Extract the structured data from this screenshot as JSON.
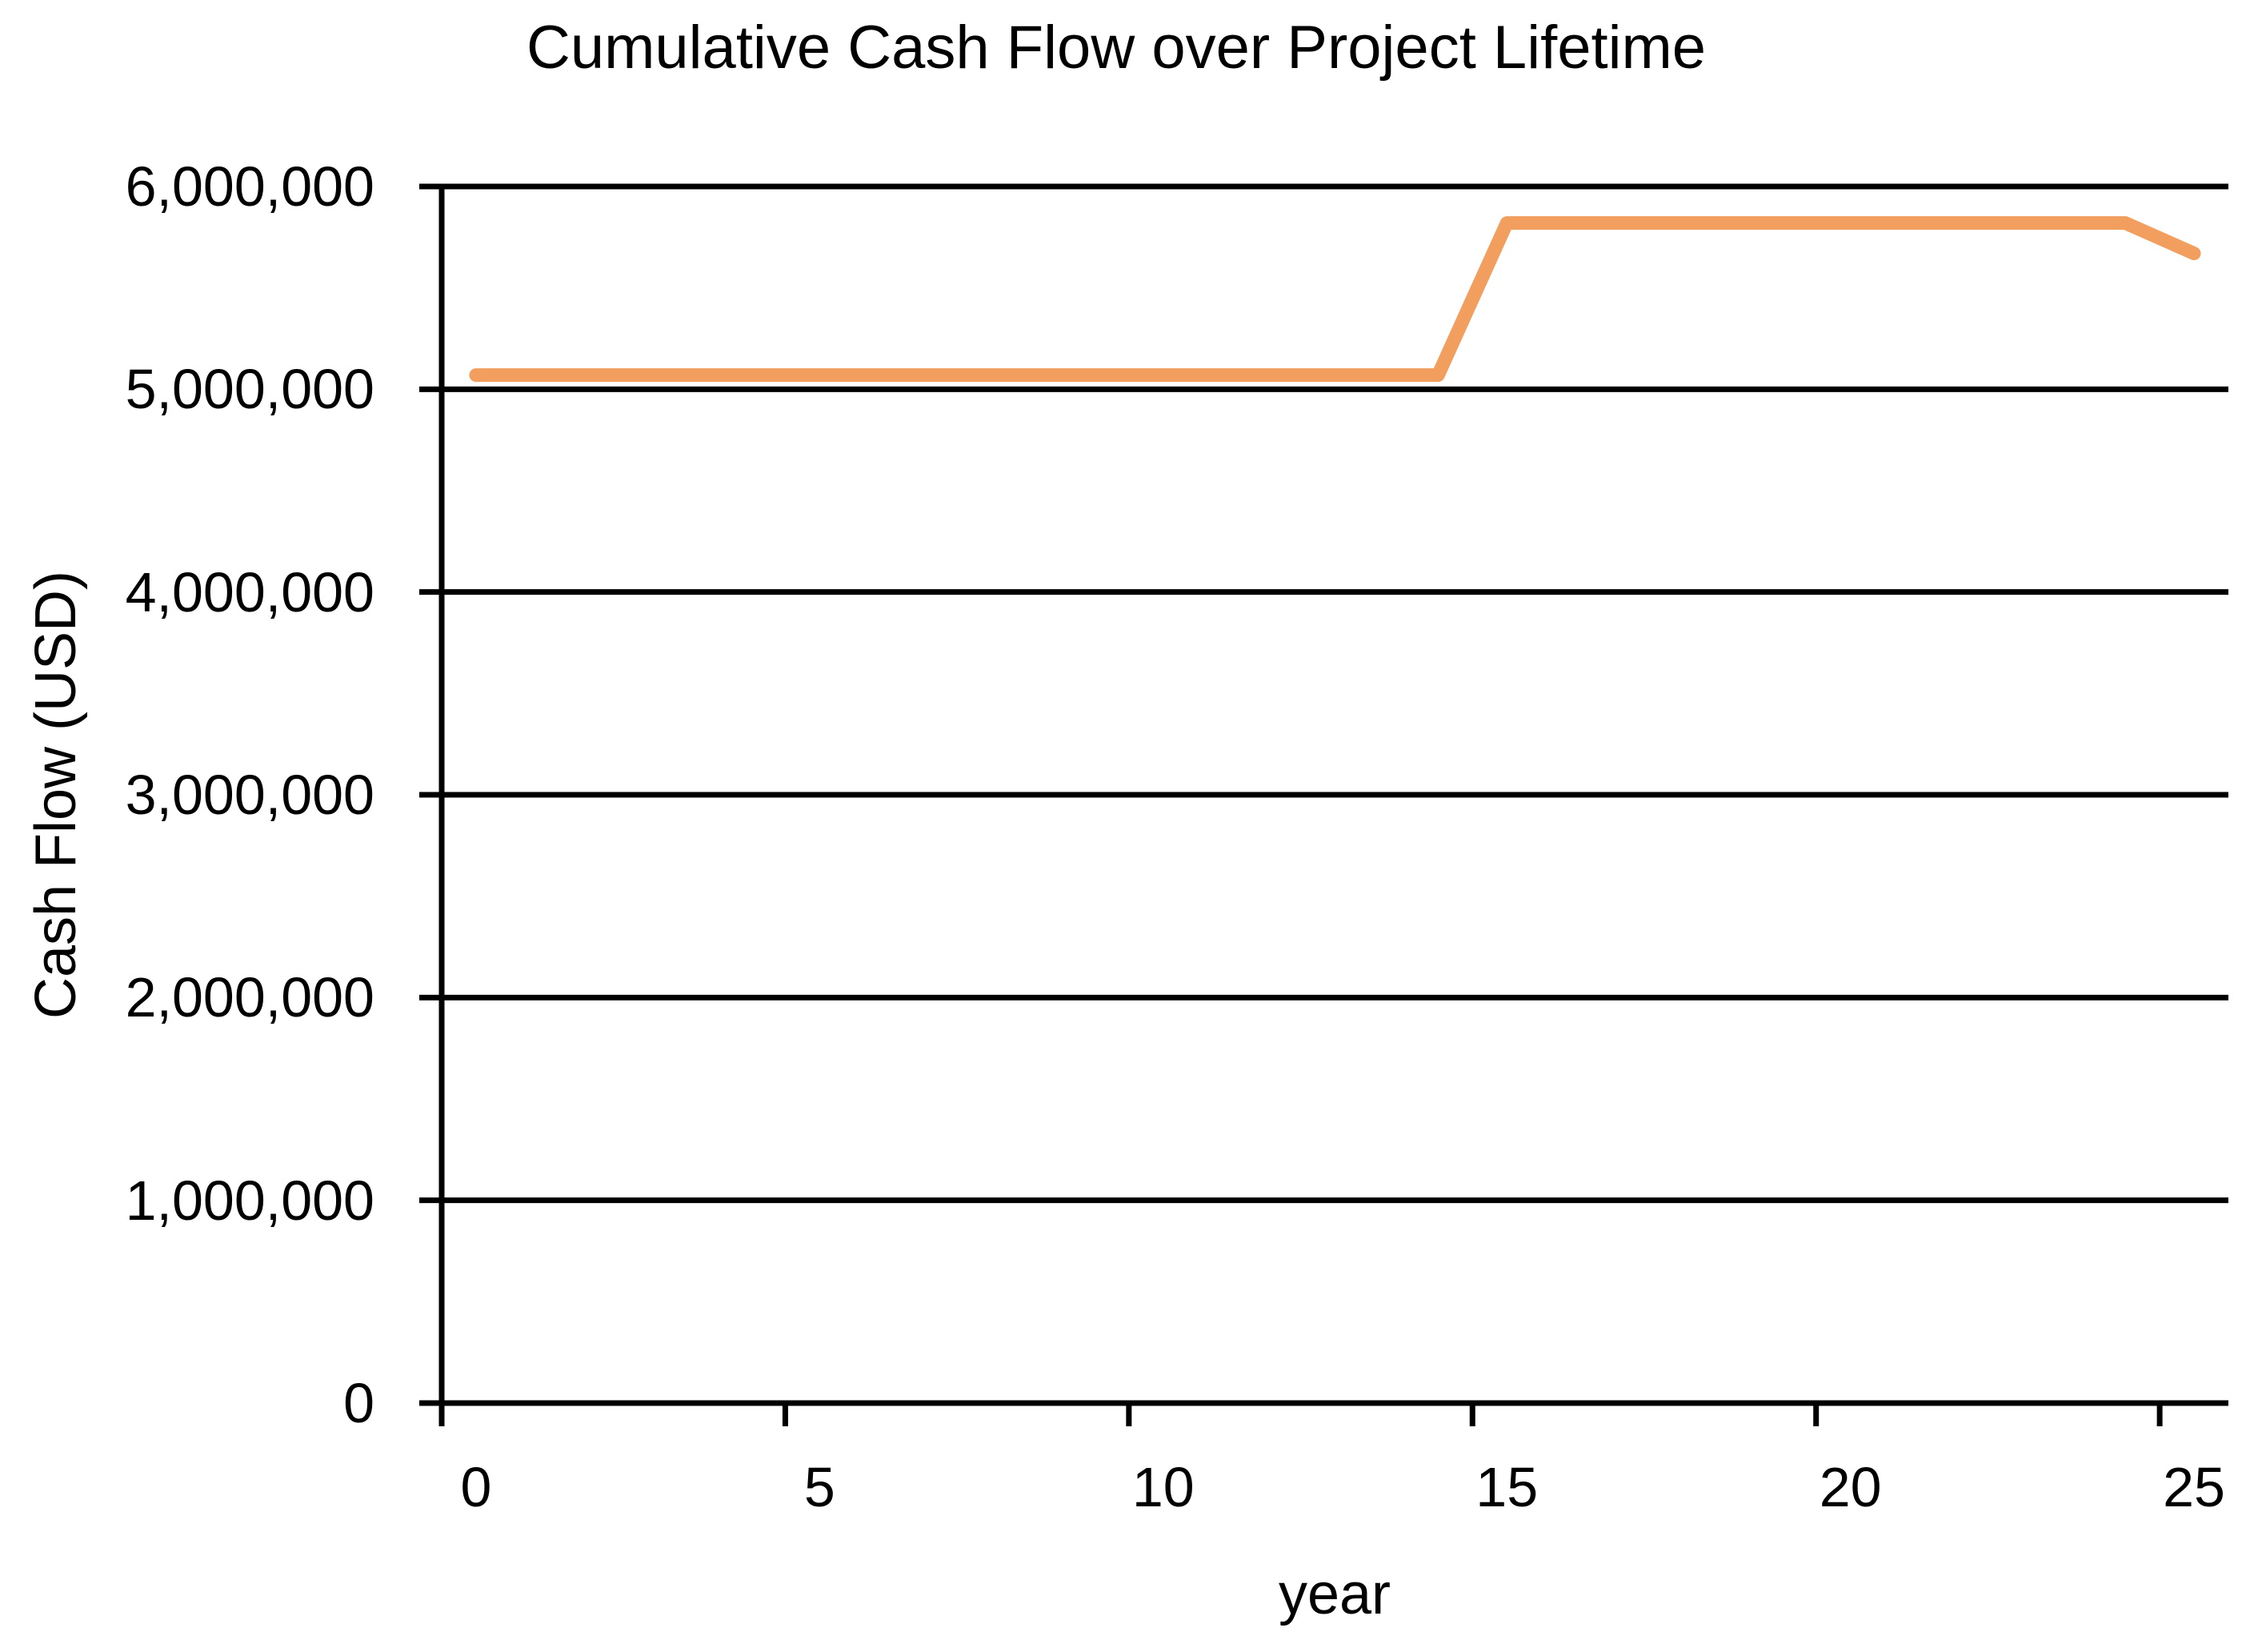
{
  "chart_data": {
    "type": "line",
    "title": "Cumulative Cash Flow over Project Lifetime",
    "xlabel": "year",
    "ylabel": "Cash Flow (USD)",
    "x": [
      0,
      1,
      2,
      3,
      4,
      5,
      6,
      7,
      8,
      9,
      10,
      11,
      12,
      13,
      14,
      15,
      16,
      17,
      18,
      19,
      20,
      21,
      22,
      23,
      24,
      25
    ],
    "values": [
      5070000,
      5070000,
      5070000,
      5070000,
      5070000,
      5070000,
      5070000,
      5070000,
      5070000,
      5070000,
      5070000,
      5070000,
      5070000,
      5070000,
      5070000,
      5820000,
      5820000,
      5820000,
      5820000,
      5820000,
      5820000,
      5820000,
      5820000,
      5820000,
      5820000,
      5670000
    ],
    "series_name": "Cumulative Cash Flow",
    "ylim": [
      0,
      6000000
    ],
    "y_ticks": [
      {
        "value": 0,
        "label": "0"
      },
      {
        "value": 1000000,
        "label": "1,000,000"
      },
      {
        "value": 2000000,
        "label": "2,000,000"
      },
      {
        "value": 3000000,
        "label": "3,000,000"
      },
      {
        "value": 4000000,
        "label": "4,000,000"
      },
      {
        "value": 5000000,
        "label": "5,000,000"
      },
      {
        "value": 6000000,
        "label": "6,000,000"
      }
    ],
    "x_ticks": [
      {
        "value": 0,
        "label": "0"
      },
      {
        "value": 5,
        "label": "5"
      },
      {
        "value": 10,
        "label": "10"
      },
      {
        "value": 15,
        "label": "15"
      },
      {
        "value": 20,
        "label": "20"
      },
      {
        "value": 25,
        "label": "25"
      }
    ],
    "grid": "horizontal",
    "legend": "none",
    "line_color": "#F19E5F",
    "axis_color": "#000000",
    "line_width": 17
  }
}
